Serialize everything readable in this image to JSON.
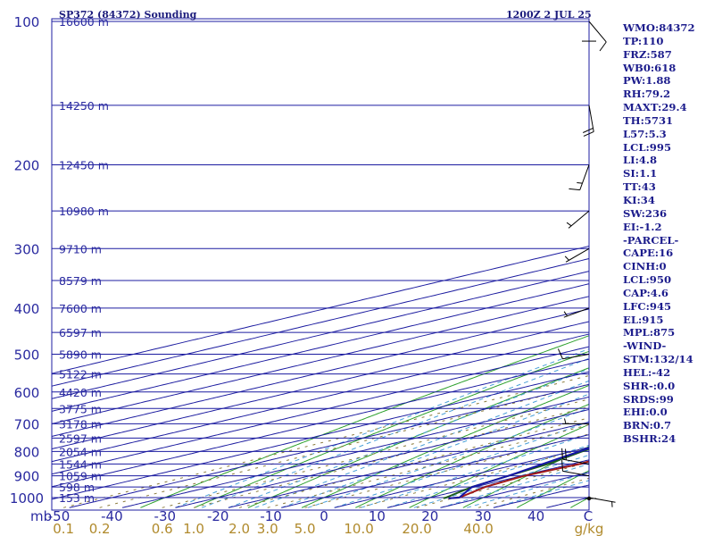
{
  "header": {
    "station_label": "SP372 (84372) Sounding",
    "time_label": "1200Z  2 JUL 25"
  },
  "colors": {
    "background": "#ffffff",
    "isobar": "#1c1ca0",
    "isotherm": "#1c1ca0",
    "dry_adiabat": "#2ea02e",
    "moist_adiabat": "#4aa0d8",
    "mixing_ratio": "#8a7a3a",
    "temperature": "#a01818",
    "dewpoint": "#1e5a1e",
    "parcel": "#1414a8",
    "wind_barb": "#000000"
  },
  "stats": [
    "WMO:84372",
    "TP:110",
    "FRZ:587",
    "WB0:618",
    "PW:1.88",
    "RH:79.2",
    "MAXT:29.4",
    "TH:5731",
    "L57:5.3",
    "LCL:995",
    "LI:4.8",
    "SI:1.1",
    "TT:43",
    "KI:34",
    "SW:236",
    "EI:-1.2",
    "-PARCEL-",
    "CAPE:16",
    "CINH:0",
    "LCL:950",
    "CAP:4.6",
    "LFC:945",
    "EL:915",
    "MPL:875",
    "-WIND-",
    "STM:132/14",
    "HEL:-42",
    "SHR-:0.0",
    "SRDS:99",
    "EHI:0.0",
    "BRN:0.7",
    "BSHR:24"
  ],
  "chart_data": {
    "type": "line",
    "title": "SP372 (84372) Sounding",
    "subtitle": "1200Z  2 JUL 25",
    "diagram": "skew-T log-P",
    "xlabel": "C",
    "ylabel": "mb",
    "pressure_ticks": [
      100,
      200,
      300,
      400,
      500,
      600,
      700,
      800,
      900,
      1000
    ],
    "temperature_ticks": [
      -50,
      -40,
      -30,
      -20,
      -10,
      0,
      10,
      20,
      30,
      40
    ],
    "temperature_tick_labels": [
      "-50",
      "-40",
      "-30",
      "-20",
      "-10",
      "0",
      "10",
      "20",
      "30",
      "40"
    ],
    "mixing_ratio_ticks": [
      0.1,
      0.2,
      0.6,
      1.0,
      2.0,
      3.0,
      5.0,
      10.0,
      20.0,
      40.0
    ],
    "mixing_ratio_tick_labels": [
      "0.1",
      "0.2",
      "0.6",
      "1.0",
      "2.0",
      "3.0",
      "5.0",
      "10.0",
      "20.0",
      "40.0"
    ],
    "mixing_ratio_unit": "g/kg",
    "height_labels": [
      {
        "p": 100,
        "label": "16600 m"
      },
      {
        "p": 150,
        "label": "14250 m"
      },
      {
        "p": 200,
        "label": "12450 m"
      },
      {
        "p": 250,
        "label": "10980 m"
      },
      {
        "p": 300,
        "label": "9710 m"
      },
      {
        "p": 350,
        "label": "8579 m"
      },
      {
        "p": 400,
        "label": "7600 m"
      },
      {
        "p": 450,
        "label": "6597 m"
      },
      {
        "p": 500,
        "label": "5890 m"
      },
      {
        "p": 550,
        "label": "5122 m"
      },
      {
        "p": 600,
        "label": "4420 m"
      },
      {
        "p": 650,
        "label": "3775 m"
      },
      {
        "p": 700,
        "label": "3178 m"
      },
      {
        "p": 750,
        "label": "2597 m"
      },
      {
        "p": 800,
        "label": "2054 m"
      },
      {
        "p": 850,
        "label": "1544 m"
      },
      {
        "p": 900,
        "label": "1059 m"
      },
      {
        "p": 950,
        "label": "598 m"
      },
      {
        "p": 1000,
        "label": "153 m"
      }
    ],
    "series": [
      {
        "name": "temperature",
        "points": [
          [
            1003,
            24.0
          ],
          [
            1000,
            25.5
          ],
          [
            950,
            22.0
          ],
          [
            900,
            20.5
          ],
          [
            850,
            21.5
          ],
          [
            800,
            20.0
          ],
          [
            750,
            18.5
          ],
          [
            700,
            17.0
          ],
          [
            650,
            12.5
          ],
          [
            600,
            7.5
          ],
          [
            550,
            2.0
          ],
          [
            500,
            -4.0
          ],
          [
            450,
            -9.5
          ],
          [
            400,
            -15.0
          ],
          [
            350,
            -22.5
          ],
          [
            300,
            -30.5
          ],
          [
            250,
            -40.0
          ],
          [
            200,
            -49.5
          ],
          [
            180,
            -55.0
          ],
          [
            150,
            -61.0
          ],
          [
            125,
            -71.0
          ],
          [
            110,
            -77.5
          ],
          [
            100,
            -73.0
          ]
        ]
      },
      {
        "name": "dewpoint",
        "points": [
          [
            1003,
            23.0
          ],
          [
            1000,
            23.0
          ],
          [
            950,
            19.5
          ],
          [
            900,
            17.5
          ],
          [
            850,
            15.5
          ],
          [
            800,
            12.0
          ],
          [
            750,
            9.5
          ],
          [
            700,
            7.0
          ],
          [
            650,
            0.0
          ],
          [
            600,
            -3.0
          ],
          [
            550,
            -10.0
          ],
          [
            500,
            -19.0
          ],
          [
            450,
            -26.0
          ],
          [
            400,
            -33.0
          ],
          [
            350,
            -38.0
          ],
          [
            300,
            -43.0
          ],
          [
            250,
            -54.0
          ],
          [
            200,
            -69.0
          ],
          [
            160,
            -74.0
          ],
          [
            125,
            -83.0
          ],
          [
            110,
            -87.0
          ],
          [
            100,
            -86.5
          ]
        ]
      },
      {
        "name": "parcel",
        "points": [
          [
            1003,
            24.0
          ],
          [
            1000,
            25.5
          ],
          [
            950,
            19.5
          ],
          [
            900,
            17.5
          ],
          [
            850,
            14.5
          ],
          [
            800,
            11.5
          ],
          [
            750,
            8.5
          ],
          [
            700,
            5.0
          ],
          [
            650,
            1.5
          ],
          [
            600,
            -2.5
          ],
          [
            550,
            -7.0
          ],
          [
            500,
            -12.0
          ],
          [
            450,
            -18.0
          ],
          [
            400,
            -24.5
          ],
          [
            350,
            -32.0
          ],
          [
            300,
            -41.0
          ],
          [
            250,
            -51.5
          ],
          [
            200,
            -64.0
          ],
          [
            150,
            -80.0
          ],
          [
            100,
            -102.0
          ]
        ]
      }
    ],
    "wind_barbs": [
      {
        "p": 100,
        "dir": 140,
        "kt": 10
      },
      {
        "p": 150,
        "dir": 170,
        "kt": 20
      },
      {
        "p": 200,
        "dir": 200,
        "kt": 15
      },
      {
        "p": 250,
        "dir": 230,
        "kt": 5
      },
      {
        "p": 300,
        "dir": 240,
        "kt": 5
      },
      {
        "p": 400,
        "dir": 250,
        "kt": 5
      },
      {
        "p": 500,
        "dir": 260,
        "kt": 10
      },
      {
        "p": 700,
        "dir": 270,
        "kt": 5
      },
      {
        "p": 850,
        "dir": 280,
        "kt": 20
      },
      {
        "p": 900,
        "dir": 280,
        "kt": 10
      },
      {
        "p": 1000,
        "dir": 100,
        "kt": 5
      }
    ],
    "ylim": [
      1050,
      100
    ],
    "xlim_at_1000mb": [
      -50,
      50
    ]
  }
}
